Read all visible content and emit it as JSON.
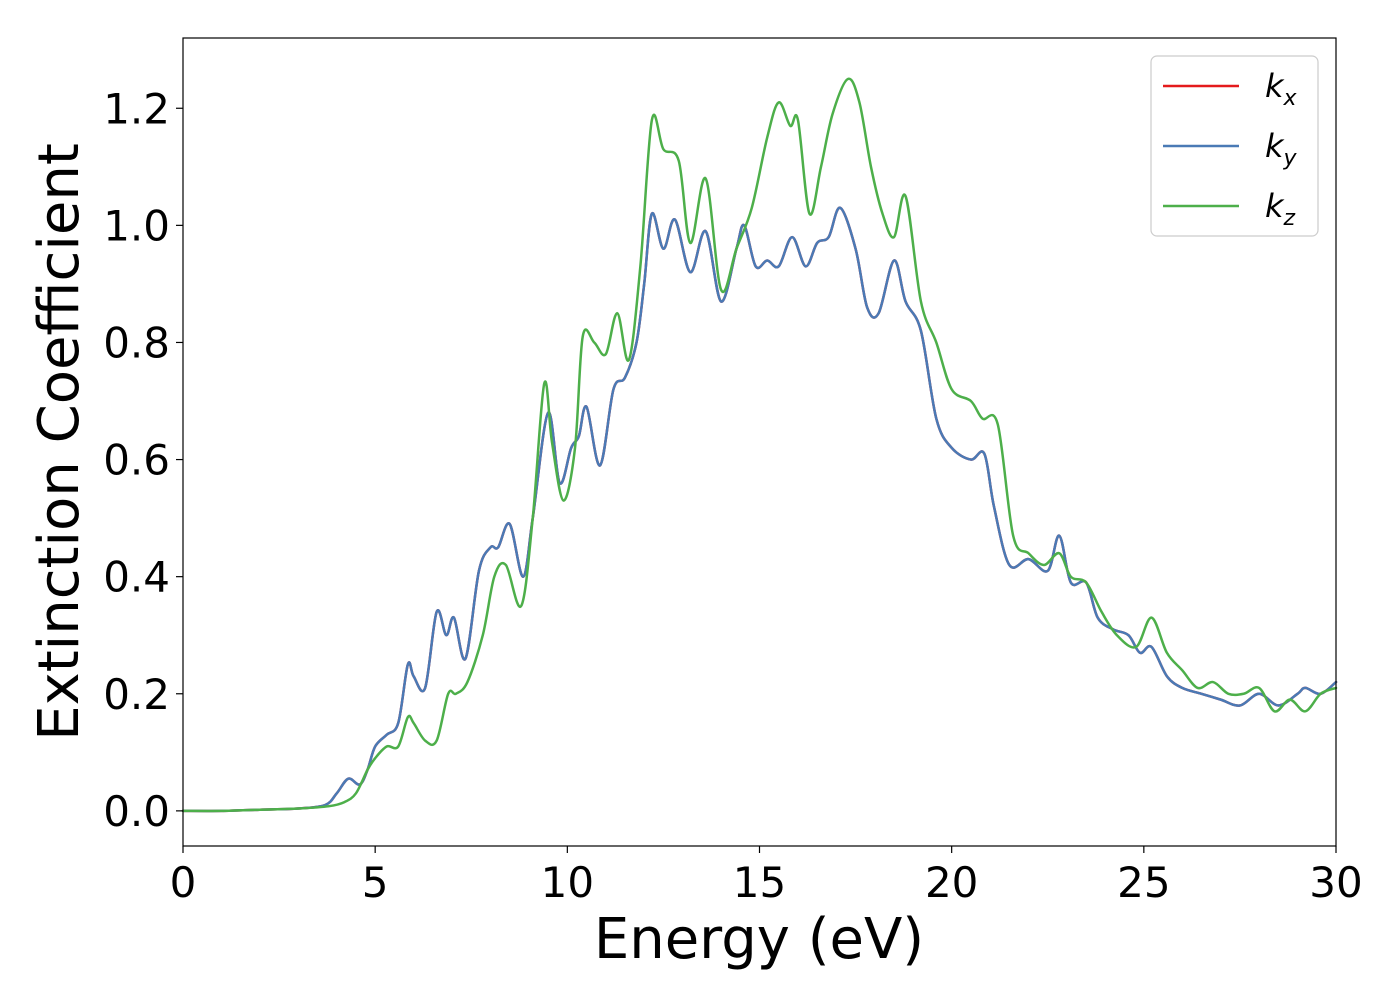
{
  "chart_data": {
    "type": "line",
    "xlabel": "Energy (eV)",
    "ylabel": "Extinction Coefficient",
    "xlim": [
      0,
      30
    ],
    "ylim": [
      -0.06,
      1.32
    ],
    "xticks": [
      0,
      5,
      10,
      15,
      20,
      25,
      30
    ],
    "xtick_labels": [
      "0",
      "5",
      "10",
      "15",
      "20",
      "25",
      "30"
    ],
    "yticks": [
      0.0,
      0.2,
      0.4,
      0.6,
      0.8,
      1.0,
      1.2
    ],
    "ytick_labels": [
      "0.0",
      "0.2",
      "0.4",
      "0.6",
      "0.8",
      "1.0",
      "1.2"
    ],
    "grid": false,
    "legend_position": "top-right",
    "series": [
      {
        "name": "k",
        "subscript": "x",
        "color": "#e41a1c",
        "x": [
          0,
          1,
          2,
          3,
          3.7,
          4.0,
          4.3,
          4.6,
          4.8,
          5.0,
          5.3,
          5.6,
          5.85,
          6.0,
          6.3,
          6.6,
          6.85,
          7.05,
          7.35,
          7.7,
          8.0,
          8.2,
          8.5,
          8.85,
          9.1,
          9.5,
          9.8,
          10.1,
          10.3,
          10.5,
          10.85,
          11.2,
          11.5,
          11.8,
          12.0,
          12.2,
          12.5,
          12.8,
          13.2,
          13.6,
          14.0,
          14.4,
          14.6,
          14.9,
          15.2,
          15.5,
          15.85,
          16.2,
          16.5,
          16.8,
          17.1,
          17.5,
          17.8,
          18.1,
          18.5,
          18.8,
          19.2,
          19.6,
          20.0,
          20.5,
          20.85,
          21.1,
          21.5,
          22.0,
          22.5,
          22.8,
          23.1,
          23.5,
          23.8,
          24.2,
          24.6,
          24.9,
          25.2,
          25.6,
          26.0,
          26.5,
          27.0,
          27.5,
          28.0,
          28.5,
          29.0,
          29.2,
          29.6,
          30.0
        ],
        "y": [
          0.0,
          0.0,
          0.002,
          0.004,
          0.01,
          0.03,
          0.055,
          0.045,
          0.07,
          0.11,
          0.13,
          0.15,
          0.25,
          0.23,
          0.21,
          0.34,
          0.3,
          0.33,
          0.26,
          0.41,
          0.45,
          0.45,
          0.49,
          0.4,
          0.5,
          0.68,
          0.56,
          0.62,
          0.64,
          0.69,
          0.59,
          0.72,
          0.74,
          0.8,
          0.9,
          1.02,
          0.96,
          1.01,
          0.92,
          0.99,
          0.87,
          0.96,
          1.0,
          0.93,
          0.94,
          0.93,
          0.98,
          0.93,
          0.97,
          0.98,
          1.03,
          0.96,
          0.86,
          0.85,
          0.94,
          0.87,
          0.82,
          0.67,
          0.62,
          0.6,
          0.61,
          0.52,
          0.42,
          0.43,
          0.41,
          0.47,
          0.39,
          0.39,
          0.33,
          0.31,
          0.3,
          0.27,
          0.28,
          0.23,
          0.21,
          0.2,
          0.19,
          0.18,
          0.2,
          0.18,
          0.2,
          0.21,
          0.2,
          0.22
        ]
      },
      {
        "name": "k",
        "subscript": "y",
        "color": "#4a7ab5",
        "x": [
          0,
          1,
          2,
          3,
          3.7,
          4.0,
          4.3,
          4.6,
          4.8,
          5.0,
          5.3,
          5.6,
          5.85,
          6.0,
          6.3,
          6.6,
          6.85,
          7.05,
          7.35,
          7.7,
          8.0,
          8.2,
          8.5,
          8.85,
          9.1,
          9.5,
          9.8,
          10.1,
          10.3,
          10.5,
          10.85,
          11.2,
          11.5,
          11.8,
          12.0,
          12.2,
          12.5,
          12.8,
          13.2,
          13.6,
          14.0,
          14.4,
          14.6,
          14.9,
          15.2,
          15.5,
          15.85,
          16.2,
          16.5,
          16.8,
          17.1,
          17.5,
          17.8,
          18.1,
          18.5,
          18.8,
          19.2,
          19.6,
          20.0,
          20.5,
          20.85,
          21.1,
          21.5,
          22.0,
          22.5,
          22.8,
          23.1,
          23.5,
          23.8,
          24.2,
          24.6,
          24.9,
          25.2,
          25.6,
          26.0,
          26.5,
          27.0,
          27.5,
          28.0,
          28.5,
          29.0,
          29.2,
          29.6,
          30.0
        ],
        "y": [
          0.0,
          0.0,
          0.002,
          0.004,
          0.01,
          0.03,
          0.055,
          0.045,
          0.07,
          0.11,
          0.13,
          0.15,
          0.25,
          0.23,
          0.21,
          0.34,
          0.3,
          0.33,
          0.26,
          0.41,
          0.45,
          0.45,
          0.49,
          0.4,
          0.5,
          0.68,
          0.56,
          0.62,
          0.64,
          0.69,
          0.59,
          0.72,
          0.74,
          0.8,
          0.9,
          1.02,
          0.96,
          1.01,
          0.92,
          0.99,
          0.87,
          0.96,
          1.0,
          0.93,
          0.94,
          0.93,
          0.98,
          0.93,
          0.97,
          0.98,
          1.03,
          0.96,
          0.86,
          0.85,
          0.94,
          0.87,
          0.82,
          0.67,
          0.62,
          0.6,
          0.61,
          0.52,
          0.42,
          0.43,
          0.41,
          0.47,
          0.39,
          0.39,
          0.33,
          0.31,
          0.3,
          0.27,
          0.28,
          0.23,
          0.21,
          0.2,
          0.19,
          0.18,
          0.2,
          0.18,
          0.2,
          0.21,
          0.2,
          0.22
        ]
      },
      {
        "name": "k",
        "subscript": "z",
        "color": "#4daf4a",
        "x": [
          0,
          1,
          2,
          3,
          3.8,
          4.2,
          4.5,
          4.8,
          5.0,
          5.3,
          5.6,
          5.85,
          6.0,
          6.3,
          6.6,
          6.9,
          7.1,
          7.4,
          7.8,
          8.1,
          8.4,
          8.8,
          9.1,
          9.4,
          9.6,
          9.9,
          10.2,
          10.4,
          10.7,
          11.0,
          11.3,
          11.6,
          11.9,
          12.2,
          12.5,
          12.9,
          13.2,
          13.6,
          14.0,
          14.4,
          14.8,
          15.2,
          15.5,
          15.8,
          16.0,
          16.3,
          16.6,
          16.9,
          17.3,
          17.6,
          17.9,
          18.2,
          18.5,
          18.8,
          19.2,
          19.6,
          20.0,
          20.5,
          20.8,
          21.2,
          21.6,
          22.0,
          22.4,
          22.8,
          23.1,
          23.5,
          23.9,
          24.3,
          24.8,
          25.2,
          25.6,
          26.0,
          26.4,
          26.8,
          27.2,
          27.6,
          28.0,
          28.4,
          28.8,
          29.2,
          29.6,
          30.0
        ],
        "y": [
          0.0,
          0.0,
          0.002,
          0.004,
          0.008,
          0.015,
          0.03,
          0.07,
          0.09,
          0.11,
          0.11,
          0.16,
          0.15,
          0.12,
          0.12,
          0.2,
          0.2,
          0.22,
          0.3,
          0.4,
          0.42,
          0.35,
          0.5,
          0.73,
          0.63,
          0.53,
          0.62,
          0.81,
          0.8,
          0.78,
          0.85,
          0.77,
          0.93,
          1.18,
          1.13,
          1.11,
          0.97,
          1.08,
          0.89,
          0.96,
          1.03,
          1.15,
          1.21,
          1.17,
          1.18,
          1.02,
          1.1,
          1.19,
          1.25,
          1.21,
          1.1,
          1.02,
          0.98,
          1.05,
          0.87,
          0.8,
          0.72,
          0.7,
          0.67,
          0.66,
          0.47,
          0.44,
          0.42,
          0.44,
          0.4,
          0.39,
          0.34,
          0.3,
          0.28,
          0.33,
          0.27,
          0.24,
          0.21,
          0.22,
          0.2,
          0.2,
          0.21,
          0.17,
          0.19,
          0.17,
          0.2,
          0.21
        ]
      }
    ]
  }
}
